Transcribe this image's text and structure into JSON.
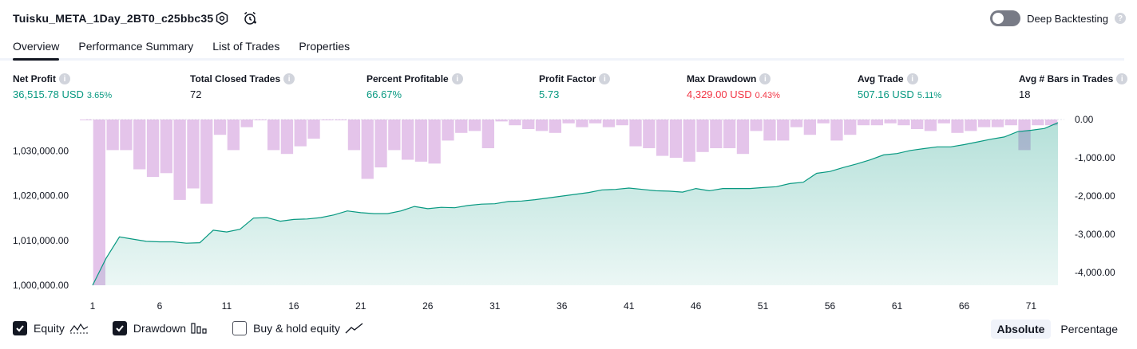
{
  "header": {
    "strategy_name": "Tuisku_META_1Day_2BT0_c25bbc35",
    "deep_backtesting_label": "Deep Backtesting",
    "deep_backtesting_enabled": false
  },
  "tabs": [
    {
      "label": "Overview",
      "active": true
    },
    {
      "label": "Performance Summary",
      "active": false
    },
    {
      "label": "List of Trades",
      "active": false
    },
    {
      "label": "Properties",
      "active": false
    }
  ],
  "stats": [
    {
      "label": "Net Profit",
      "value": "36,515.78 USD",
      "pct": "3.65%",
      "color": "green"
    },
    {
      "label": "Total Closed Trades",
      "value": "72",
      "pct": "",
      "color": "dark"
    },
    {
      "label": "Percent Profitable",
      "value": "66.67%",
      "pct": "",
      "color": "green"
    },
    {
      "label": "Profit Factor",
      "value": "5.73",
      "pct": "",
      "color": "green"
    },
    {
      "label": "Max Drawdown",
      "value": "4,329.00 USD",
      "pct": "0.43%",
      "color": "red"
    },
    {
      "label": "Avg Trade",
      "value": "507.16 USD",
      "pct": "5.11%",
      "color": "green"
    },
    {
      "label": "Avg # Bars in Trades",
      "value": "18",
      "pct": "",
      "color": "dark"
    }
  ],
  "chart_data": {
    "type": "area",
    "x": [
      1,
      2,
      3,
      4,
      5,
      6,
      7,
      8,
      9,
      10,
      11,
      12,
      13,
      14,
      15,
      16,
      17,
      18,
      19,
      20,
      21,
      22,
      23,
      24,
      25,
      26,
      27,
      28,
      29,
      30,
      31,
      32,
      33,
      34,
      35,
      36,
      37,
      38,
      39,
      40,
      41,
      42,
      43,
      44,
      45,
      46,
      47,
      48,
      49,
      50,
      51,
      52,
      53,
      54,
      55,
      56,
      57,
      58,
      59,
      60,
      61,
      62,
      63,
      64,
      65,
      66,
      67,
      68,
      69,
      70,
      71,
      72,
      73
    ],
    "x_ticks": [
      "1",
      "6",
      "11",
      "16",
      "21",
      "26",
      "31",
      "36",
      "41",
      "46",
      "51",
      "56",
      "61",
      "66",
      "71"
    ],
    "y_left_ticks": [
      "1,000,000.00",
      "1,010,000.00",
      "1,020,000.00",
      "1,030,000.00"
    ],
    "y_right_ticks": [
      "0.00",
      "-1,000.00",
      "-2,000.00",
      "-3,000.00",
      "-4,000.00"
    ],
    "y_left_range": [
      1000000,
      1037000
    ],
    "y_right_range": [
      -4329,
      0
    ],
    "series": [
      {
        "name": "Equity",
        "color": "#089981",
        "values": [
          1000000,
          1006000,
          1010800,
          1010300,
          1009800,
          1009700,
          1009700,
          1009400,
          1009500,
          1012300,
          1011900,
          1012500,
          1015000,
          1015100,
          1014300,
          1014700,
          1014800,
          1015100,
          1015700,
          1016600,
          1016200,
          1016000,
          1016000,
          1016600,
          1017600,
          1017100,
          1017400,
          1017300,
          1017800,
          1018100,
          1018200,
          1018700,
          1018800,
          1019100,
          1019500,
          1019900,
          1020300,
          1020700,
          1021300,
          1021400,
          1021700,
          1021400,
          1021100,
          1021000,
          1020800,
          1021600,
          1021100,
          1021600,
          1021600,
          1021600,
          1021800,
          1022000,
          1022700,
          1023000,
          1025000,
          1025400,
          1026300,
          1027100,
          1028000,
          1029100,
          1029400,
          1030100,
          1030500,
          1030900,
          1030900,
          1031400,
          1032000,
          1032600,
          1033100,
          1034300,
          1034600,
          1035000,
          1036300
        ]
      },
      {
        "name": "Drawdown",
        "color": "#ce93d8",
        "values": [
          0,
          -4329,
          -800,
          -800,
          -1300,
          -1500,
          -1400,
          -2100,
          -1800,
          -2200,
          -400,
          -800,
          -200,
          0,
          -800,
          -900,
          -700,
          -500,
          0,
          0,
          -800,
          -1550,
          -1250,
          -800,
          -1050,
          -1100,
          -1150,
          -550,
          -350,
          -300,
          -750,
          -50,
          -150,
          -250,
          -300,
          -350,
          -100,
          -200,
          -100,
          -200,
          -150,
          -700,
          -750,
          -950,
          -1000,
          -1100,
          -850,
          -750,
          -750,
          -900,
          -300,
          -550,
          -550,
          -200,
          -400,
          -100,
          -550,
          -400,
          -150,
          -150,
          -100,
          -150,
          -250,
          -300,
          -100,
          -350,
          -300,
          -200,
          -200,
          -150,
          -800,
          -150,
          -150
        ]
      }
    ]
  },
  "legend": [
    {
      "label": "Equity",
      "checked": true,
      "icon": "equity-line-icon"
    },
    {
      "label": "Drawdown",
      "checked": true,
      "icon": "drawdown-bars-icon"
    },
    {
      "label": "Buy & hold equity",
      "checked": false,
      "icon": "buy-hold-line-icon"
    }
  ],
  "modes": [
    {
      "label": "Absolute",
      "active": true
    },
    {
      "label": "Percentage",
      "active": false
    }
  ]
}
